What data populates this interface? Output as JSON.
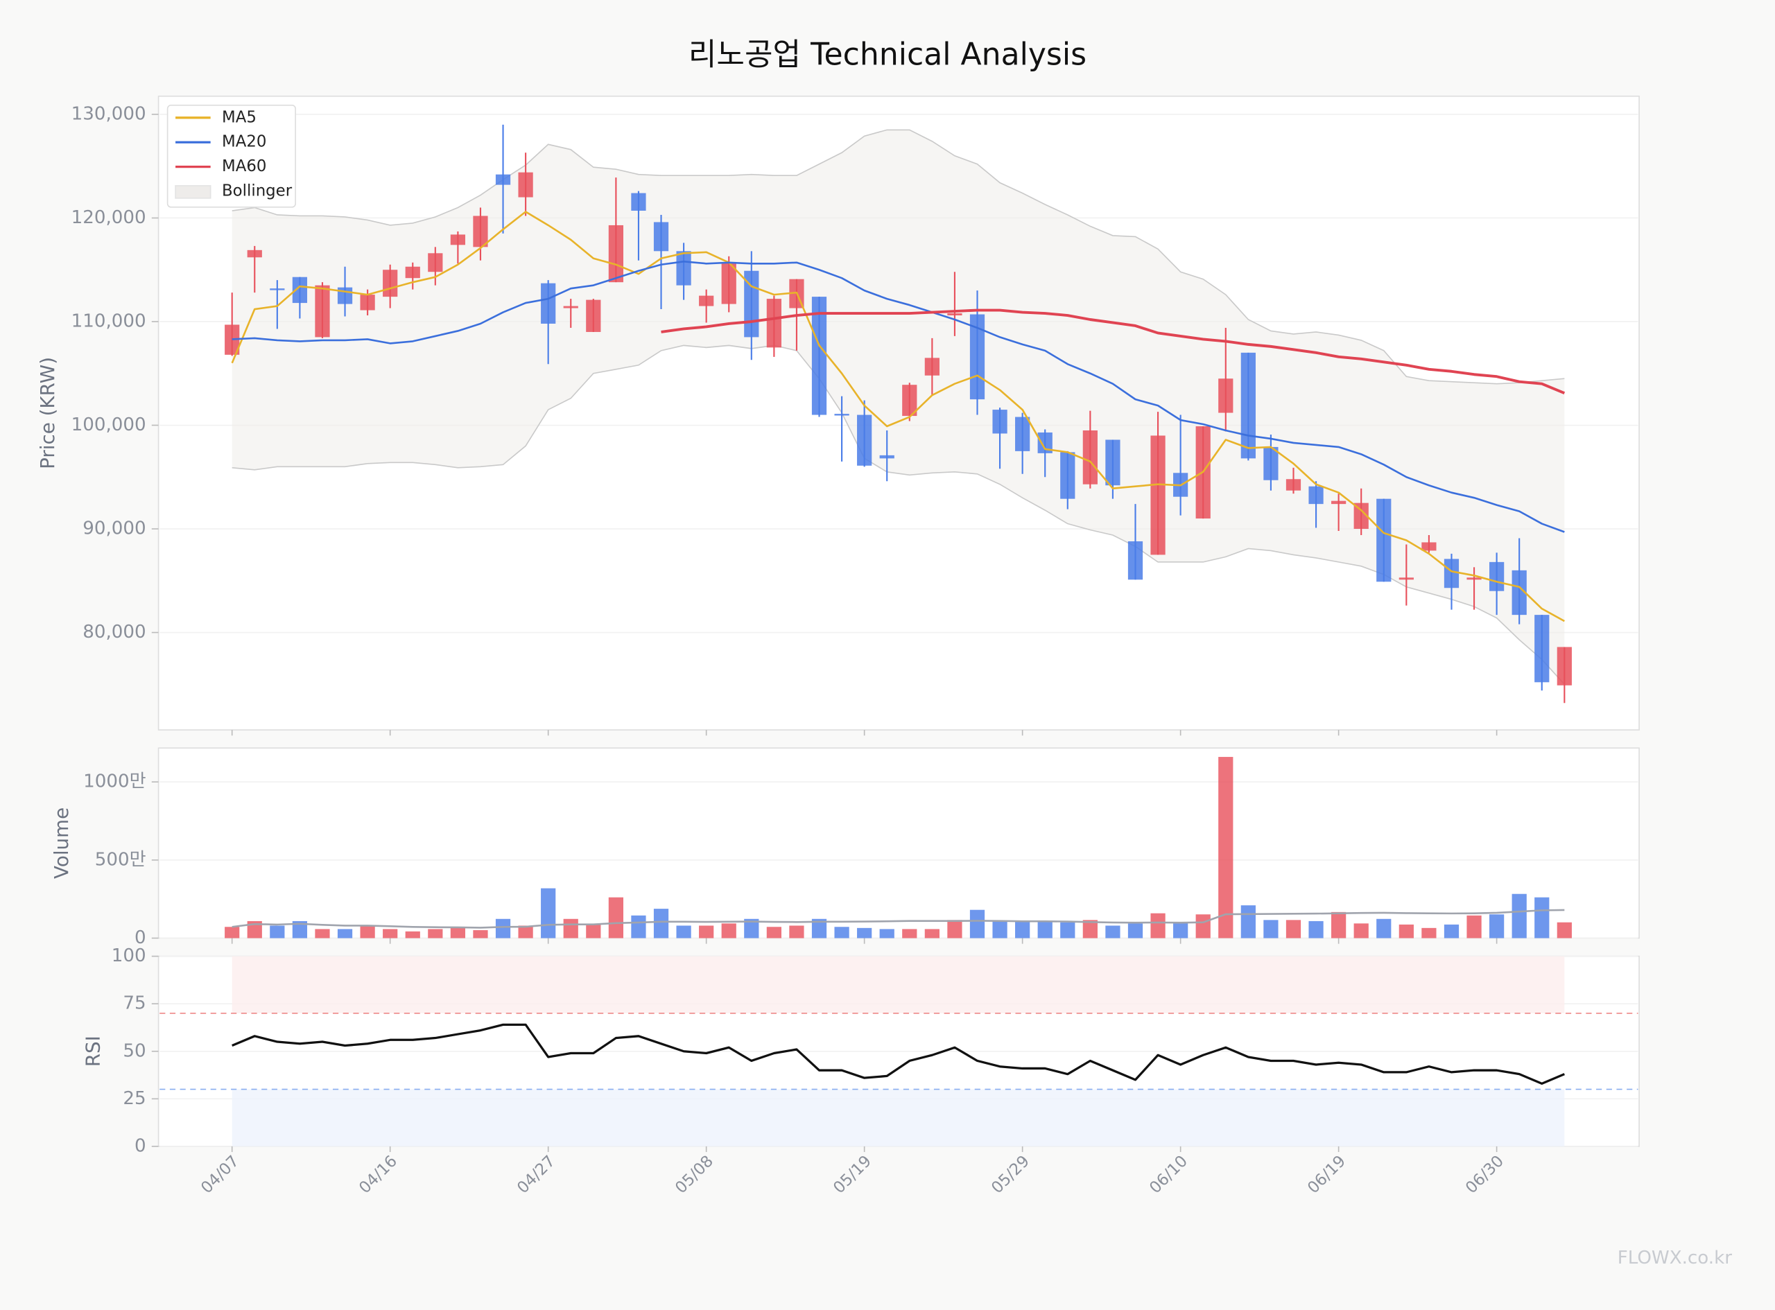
{
  "title": "리노공업 Technical Analysis",
  "watermark": "FLOWX.co.kr",
  "chart_data": [
    {
      "type": "candlestick",
      "ylabel": "Price (KRW)",
      "ylim": [
        70600,
        131750
      ],
      "yticks": [
        {
          "value": 80000,
          "label": "80,000"
        },
        {
          "value": 90000,
          "label": "90,000"
        },
        {
          "value": 100000,
          "label": "100,000"
        },
        {
          "value": 110000,
          "label": "110,000"
        },
        {
          "value": 120000,
          "label": "120,000"
        },
        {
          "value": 130000,
          "label": "130,000"
        }
      ],
      "grid": true,
      "legend": "upper left",
      "up_color": "#e8505b",
      "down_color": "#4a7de8",
      "open": [
        106800,
        116200,
        113200,
        114300,
        108500,
        113300,
        111100,
        112400,
        114200,
        114800,
        117400,
        117200,
        124200,
        122000,
        113700,
        111300,
        109000,
        113800,
        122400,
        119600,
        116800,
        111500,
        111700,
        114900,
        107500,
        111300,
        112400,
        101100,
        101000,
        97100,
        100900,
        104800,
        110600,
        110700,
        101500,
        100800,
        99300,
        97400,
        94300,
        98600,
        88800,
        87500,
        95400,
        91000,
        101200,
        107000,
        97900,
        93700,
        94100,
        92400,
        90000,
        92900,
        85100,
        87900,
        87100,
        85100,
        86800,
        86000,
        81700,
        74900
      ],
      "high": [
        112800,
        117300,
        114000,
        114300,
        113800,
        115300,
        113100,
        115500,
        115700,
        117200,
        118700,
        121000,
        129000,
        126300,
        114000,
        112200,
        112200,
        123900,
        122600,
        120300,
        117600,
        113100,
        116300,
        116800,
        112500,
        114100,
        112400,
        102800,
        102400,
        99500,
        104100,
        108400,
        114800,
        113000,
        101700,
        101200,
        99600,
        97500,
        101400,
        98600,
        92400,
        101300,
        101000,
        99900,
        109400,
        107000,
        99100,
        95900,
        94600,
        93400,
        93900,
        92900,
        88500,
        89400,
        87600,
        86300,
        87700,
        89100,
        81700,
        78600
      ],
      "low": [
        106700,
        112800,
        109300,
        110300,
        108400,
        110500,
        110600,
        111300,
        113100,
        113500,
        115600,
        115900,
        118500,
        120200,
        105900,
        109400,
        109000,
        113800,
        115900,
        111200,
        112100,
        109900,
        110900,
        106300,
        106600,
        107200,
        100800,
        96500,
        96000,
        94600,
        100400,
        102900,
        108600,
        101000,
        95800,
        95300,
        95000,
        91900,
        93900,
        92900,
        85100,
        87500,
        91300,
        91000,
        99400,
        96600,
        93700,
        93400,
        90100,
        89800,
        89400,
        84900,
        82600,
        87700,
        82200,
        82200,
        81700,
        80800,
        74400,
        73200
      ],
      "close": [
        109700,
        116900,
        113100,
        111800,
        113500,
        111700,
        112600,
        115000,
        115300,
        116600,
        118400,
        120200,
        123200,
        124400,
        109800,
        111500,
        112100,
        119300,
        120700,
        116800,
        113500,
        112500,
        115700,
        108500,
        112200,
        114100,
        101000,
        101000,
        96100,
        96800,
        103900,
        106500,
        110800,
        102500,
        99200,
        97500,
        97300,
        92900,
        99500,
        94200,
        85100,
        99000,
        93100,
        99900,
        104500,
        96800,
        94700,
        94800,
        92400,
        92700,
        92500,
        84900,
        85300,
        88700,
        84300,
        85300,
        84000,
        81700,
        75200,
        78600
      ],
      "lines": [
        {
          "name": "MA5",
          "color": "#e8b32a",
          "values": [
            106000,
            111200,
            111500,
            113400,
            113200,
            112900,
            112600,
            113200,
            113800,
            114300,
            115500,
            117100,
            118900,
            120600,
            119300,
            117900,
            116100,
            115500,
            114600,
            116100,
            116600,
            116700,
            115700,
            113400,
            112600,
            112800,
            107700,
            105000,
            101900,
            99900,
            100800,
            102900,
            104000,
            104800,
            103400,
            101500,
            97700,
            97400,
            96500,
            93900,
            94100,
            94300,
            94200,
            95500,
            98600,
            97800,
            97900,
            96300,
            94300,
            93500,
            91800,
            89600,
            88900,
            87600,
            85900,
            85500,
            84900,
            84400,
            82300,
            81100
          ]
        },
        {
          "name": "MA20",
          "color": "#3b6fdc",
          "values": [
            108300,
            108400,
            108200,
            108100,
            108200,
            108200,
            108300,
            107900,
            108100,
            108600,
            109100,
            109800,
            110900,
            111800,
            112200,
            113200,
            113500,
            114200,
            114900,
            115500,
            115800,
            115600,
            115700,
            115600,
            115600,
            115700,
            115000,
            114200,
            113000,
            112200,
            111600,
            110900,
            110200,
            109400,
            108500,
            107800,
            107200,
            105900,
            105000,
            104000,
            102500,
            101900,
            100500,
            100100,
            99500,
            99000,
            98700,
            98300,
            98100,
            97900,
            97200,
            96200,
            95000,
            94200,
            93500,
            93000,
            92300,
            91700,
            90500,
            89700
          ]
        },
        {
          "name": "MA60",
          "color": "#e04452",
          "values": [
            null,
            null,
            null,
            null,
            null,
            null,
            null,
            null,
            null,
            null,
            null,
            null,
            null,
            null,
            null,
            null,
            null,
            null,
            null,
            109000,
            109300,
            109500,
            109800,
            110000,
            110300,
            110600,
            110800,
            110800,
            110800,
            110800,
            110800,
            110900,
            111000,
            111100,
            111100,
            110900,
            110800,
            110600,
            110200,
            109900,
            109600,
            108900,
            108600,
            108300,
            108100,
            107800,
            107600,
            107300,
            107000,
            106600,
            106400,
            106100,
            105800,
            105400,
            105200,
            104900,
            104700,
            104200,
            104000,
            103100
          ]
        }
      ],
      "bands": {
        "name": "Bollinger",
        "color": "#eeecea",
        "upper": [
          120700,
          121000,
          120300,
          120200,
          120200,
          120100,
          119800,
          119300,
          119500,
          120100,
          121000,
          122200,
          123700,
          125100,
          127100,
          126600,
          124900,
          124700,
          124200,
          124100,
          124100,
          124100,
          124100,
          124200,
          124100,
          124100,
          125200,
          126300,
          127900,
          128500,
          128500,
          127400,
          126000,
          125200,
          123400,
          122400,
          121300,
          120300,
          119200,
          118300,
          118200,
          117000,
          114800,
          114100,
          112600,
          110200,
          109100,
          108800,
          109000,
          108700,
          108200,
          107200,
          104700,
          104300,
          104200,
          104100,
          104000,
          104100,
          104300,
          104500
        ],
        "lower": [
          95900,
          95700,
          96000,
          96000,
          96000,
          96000,
          96300,
          96400,
          96400,
          96200,
          95900,
          96000,
          96200,
          98000,
          101500,
          102600,
          105000,
          105400,
          105800,
          107200,
          107700,
          107500,
          107700,
          107400,
          107700,
          107200,
          104500,
          101200,
          96800,
          95500,
          95200,
          95400,
          95500,
          95300,
          94300,
          93000,
          91800,
          90500,
          89900,
          89400,
          88300,
          86800,
          86800,
          86800,
          87300,
          88100,
          87900,
          87500,
          87200,
          86800,
          86400,
          85600,
          84400,
          83800,
          83200,
          82500,
          81400,
          79300,
          77400,
          75000
        ]
      }
    },
    {
      "type": "bar",
      "ylabel": "Volume",
      "ylim": [
        0,
        12170000
      ],
      "yticks": [
        0,
        {
          "value": 5000000,
          "label": "500만"
        },
        {
          "value": 10000000,
          "label": "1000만"
        }
      ],
      "values": [
        720000,
        1090000,
        800000,
        1090000,
        580000,
        580000,
        800000,
        580000,
        430000,
        580000,
        650000,
        510000,
        1230000,
        800000,
        3190000,
        1230000,
        870000,
        2610000,
        1450000,
        1880000,
        800000,
        800000,
        940000,
        1230000,
        720000,
        800000,
        1230000,
        720000,
        650000,
        580000,
        580000,
        580000,
        1160000,
        1810000,
        1090000,
        1090000,
        1090000,
        1010000,
        1160000,
        800000,
        940000,
        1590000,
        1010000,
        1520000,
        11600000,
        2100000,
        1160000,
        1160000,
        1090000,
        1670000,
        940000,
        1230000,
        870000,
        650000,
        870000,
        1450000,
        1520000,
        2830000,
        2610000,
        1010000
      ],
      "ma": {
        "color": "#a0a4ad",
        "values": [
          720000,
          900000,
          870000,
          920000,
          850000,
          800000,
          800000,
          760000,
          720000,
          700000,
          690000,
          670000,
          720000,
          730000,
          850000,
          880000,
          880000,
          960000,
          1000000,
          1050000,
          1050000,
          1040000,
          1050000,
          1060000,
          1040000,
          1030000,
          1050000,
          1050000,
          1060000,
          1080000,
          1100000,
          1100000,
          1100000,
          1110000,
          1100000,
          1080000,
          1080000,
          1060000,
          1030000,
          1000000,
          990000,
          1000000,
          990000,
          1010000,
          1530000,
          1540000,
          1550000,
          1560000,
          1570000,
          1590000,
          1610000,
          1620000,
          1600000,
          1590000,
          1580000,
          1590000,
          1620000,
          1700000,
          1780000,
          1800000
        ]
      }
    },
    {
      "type": "line",
      "ylabel": "RSI",
      "ylim": [
        0,
        100
      ],
      "yticks": [
        0,
        25,
        50,
        75,
        100
      ],
      "color": "#111111",
      "overbought": 70,
      "oversold": 30,
      "categories": [
        "04/07",
        null,
        null,
        null,
        null,
        null,
        null,
        "04/16",
        null,
        null,
        null,
        null,
        null,
        null,
        "04/27",
        null,
        null,
        null,
        null,
        null,
        null,
        "05/08",
        null,
        null,
        null,
        null,
        null,
        null,
        "05/19",
        null,
        null,
        null,
        null,
        null,
        null,
        "05/29",
        null,
        null,
        null,
        null,
        null,
        null,
        "06/10",
        null,
        null,
        null,
        null,
        null,
        null,
        "06/19",
        null,
        null,
        null,
        null,
        null,
        null,
        "06/30",
        null,
        null,
        null
      ],
      "values": [
        53,
        58,
        55,
        54,
        55,
        53,
        54,
        56,
        56,
        57,
        59,
        61,
        64,
        64,
        47,
        49,
        49,
        57,
        58,
        54,
        50,
        49,
        52,
        45,
        49,
        51,
        40,
        40,
        36,
        37,
        45,
        48,
        52,
        45,
        42,
        41,
        41,
        38,
        45,
        40,
        35,
        48,
        43,
        48,
        52,
        47,
        45,
        45,
        43,
        44,
        43,
        39,
        39,
        42,
        39,
        40,
        40,
        38,
        33,
        38
      ]
    }
  ]
}
